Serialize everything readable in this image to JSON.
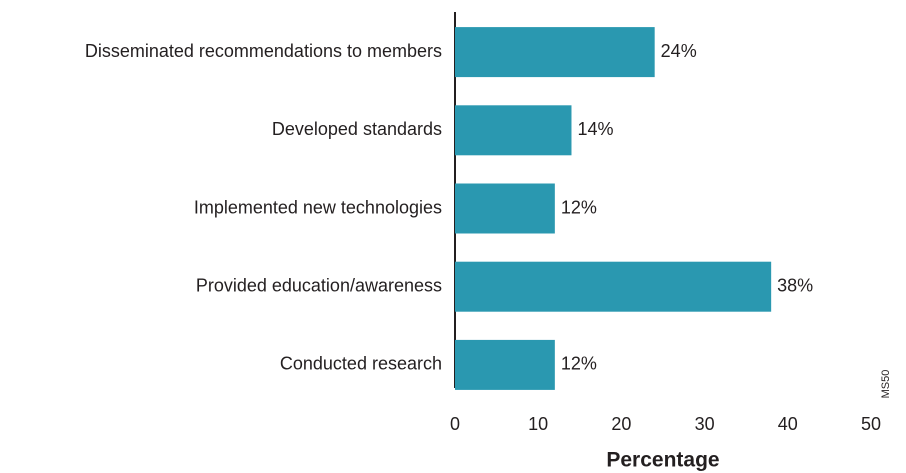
{
  "chart_data": {
    "type": "bar",
    "orientation": "horizontal",
    "categories": [
      "Disseminated recommendations to members",
      "Developed standards",
      "Implemented new technologies",
      "Provided education/awareness",
      "Conducted research"
    ],
    "values": [
      24,
      14,
      12,
      38,
      12
    ],
    "value_labels": [
      "24%",
      "14%",
      "12%",
      "38%",
      "12%"
    ],
    "color": "#2a98b0",
    "xlim": [
      0,
      50
    ],
    "xticks": [
      0,
      10,
      20,
      30,
      40,
      50
    ],
    "xlabel": "Percentage",
    "code": "MS50"
  }
}
